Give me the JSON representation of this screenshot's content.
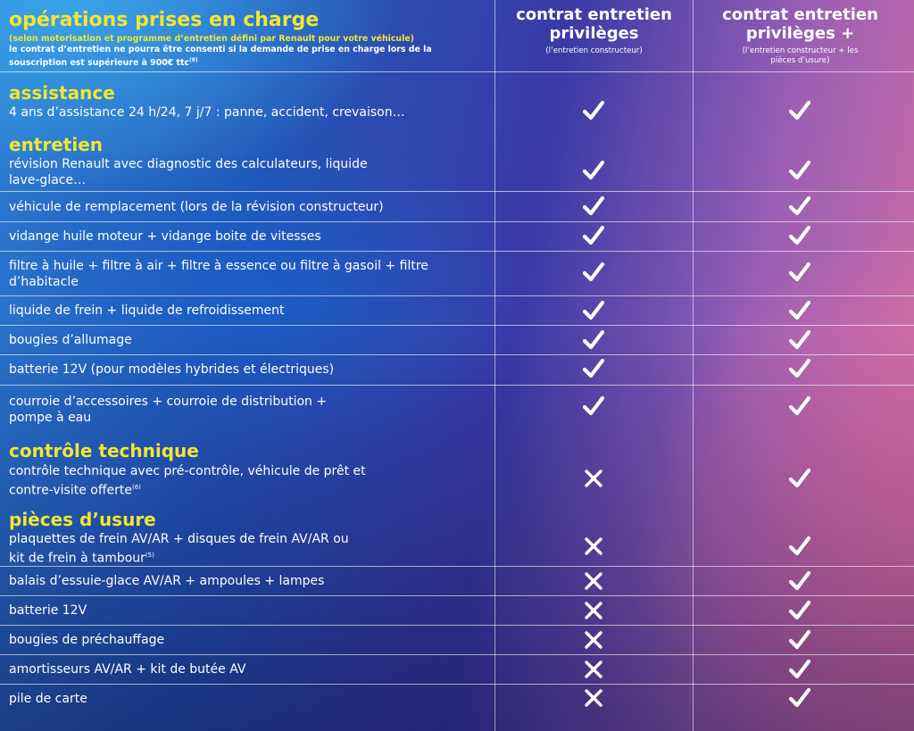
{
  "header": {
    "title": "opérations prises en charge",
    "note_yellow": "(selon motorisation et programme d’entretien défini par Renault pour votre véhicule)",
    "note_white": "le contrat d’entretien ne pourra être consenti si la demande de prise en charge lors de la souscription est supérieure à 900€ ttc",
    "note_sup": "(8)"
  },
  "columns": [
    {
      "title": "contrat entretien privilèges",
      "subtitle": "(l’entretien constructeur)"
    },
    {
      "title": "contrat entretien privilèges +",
      "subtitle": "(l’entretien constructeur + les pièces d’usure)"
    }
  ],
  "sections": {
    "assistance": "assistance",
    "entretien": "entretien",
    "controle": "contrôle technique",
    "pieces": "pièces d’usure"
  },
  "rows": [
    {
      "text": "4 ans d’assistance 24 h/24, 7 j/7 : panne, accident, crevaison…",
      "col1": "check",
      "col2": "check"
    },
    {
      "text": "révision Renault avec diagnostic des calculateurs, liquide lave-glace…",
      "col1": "check",
      "col2": "check"
    },
    {
      "text": "véhicule de remplacement (lors de la révision constructeur)",
      "col1": "check",
      "col2": "check"
    },
    {
      "text": "vidange huile moteur + vidange boite de vitesses",
      "col1": "check",
      "col2": "check"
    },
    {
      "text": "filtre à huile + filtre à air + filtre à essence ou filtre à gasoil + filtre d’habitacle",
      "col1": "check",
      "col2": "check"
    },
    {
      "text": "liquide de frein + liquide de refroidissement",
      "col1": "check",
      "col2": "check"
    },
    {
      "text": "bougies d’allumage",
      "col1": "check",
      "col2": "check"
    },
    {
      "text": "batterie 12V (pour modèles hybrides et électriques)",
      "col1": "check",
      "col2": "check"
    },
    {
      "text": "courroie d’accessoires + courroie de distribution + pompe à eau",
      "col1": "check",
      "col2": "check"
    },
    {
      "text": "contrôle technique avec pré-contrôle, véhicule de prêt et contre-visite offerte",
      "sup": "(6)",
      "col1": "cross",
      "col2": "check"
    },
    {
      "text": "plaquettes de frein AV/AR + disques de frein AV/AR ou kit de frein à tambour",
      "sup": "(5)",
      "col1": "cross",
      "col2": "check"
    },
    {
      "text": "balais d’essuie-glace AV/AR + ampoules + lampes",
      "col1": "cross",
      "col2": "check"
    },
    {
      "text": "batterie 12V",
      "col1": "cross",
      "col2": "check"
    },
    {
      "text": "bougies de préchauffage",
      "col1": "cross",
      "col2": "check"
    },
    {
      "text": "amortisseurs AV/AR + kit de butée AV",
      "col1": "cross",
      "col2": "check"
    },
    {
      "text": "pile de carte",
      "col1": "cross",
      "col2": "check"
    }
  ],
  "colors": {
    "accent_yellow": "#f2e632",
    "text": "#ffffff"
  },
  "icons": {
    "check": "checkmark-icon",
    "cross": "cross-icon"
  }
}
